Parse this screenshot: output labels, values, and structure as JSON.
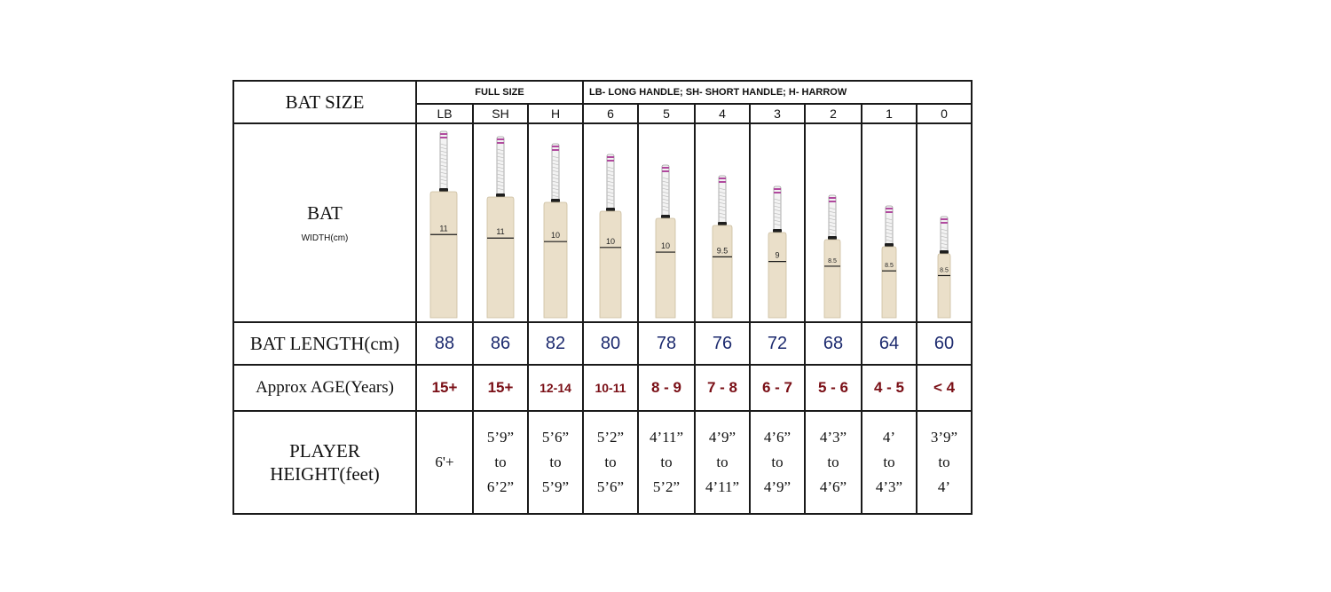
{
  "title": "BAT SIZE",
  "group_full": "FULL SIZE",
  "group_legend": "LB- LONG HANDLE; SH- SHORT HANDLE; H- HARROW",
  "bat_label": "BAT",
  "width_label": "WIDTH(cm)",
  "length_label": "BAT LENGTH(cm)",
  "age_label": "Approx AGE(Years)",
  "height_label": [
    "PLAYER",
    "HEIGHT(feet)"
  ],
  "colors": {
    "length_text": "#1c2a6e",
    "age_text": "#7a0f16",
    "bat_wood": "#eadfc9",
    "grip_accent": "#b04a9e"
  },
  "sizes": [
    {
      "code": "LB",
      "width": "11",
      "length": "88",
      "age": "15+",
      "height": [
        "6'+"
      ]
    },
    {
      "code": "SH",
      "width": "11",
      "length": "86",
      "age": "15+",
      "height": [
        "5’9”",
        "to",
        "6’2”"
      ]
    },
    {
      "code": "H",
      "width": "10",
      "length": "82",
      "age": "12-14",
      "height": [
        "5’6”",
        "to",
        "5’9”"
      ]
    },
    {
      "code": "6",
      "width": "10",
      "length": "80",
      "age": "10-11",
      "height": [
        "5’2”",
        "to",
        "5’6”"
      ]
    },
    {
      "code": "5",
      "width": "10",
      "length": "78",
      "age": "8 - 9",
      "height": [
        "4’11”",
        "to",
        "5’2”"
      ]
    },
    {
      "code": "4",
      "width": "9.5",
      "length": "76",
      "age": "7 - 8",
      "height": [
        "4’9”",
        "to",
        "4’11”"
      ]
    },
    {
      "code": "3",
      "width": "9",
      "length": "72",
      "age": "6 - 7",
      "height": [
        "4’6”",
        "to",
        "4’9”"
      ]
    },
    {
      "code": "2",
      "width": "8.5",
      "length": "68",
      "age": "5 - 6",
      "height": [
        "4’3”",
        "to",
        "4’6”"
      ]
    },
    {
      "code": "1",
      "width": "8.5",
      "length": "64",
      "age": "4 - 5",
      "height": [
        "4’",
        "to",
        "4’3”"
      ]
    },
    {
      "code": "0",
      "width": "8.5",
      "length": "60",
      "age": "< 4",
      "height": [
        "3’9”",
        "to",
        "4’"
      ]
    }
  ]
}
